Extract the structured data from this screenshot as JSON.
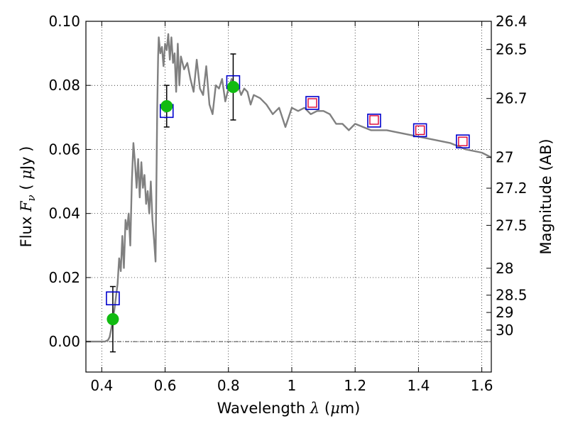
{
  "chart_data": {
    "type": "scatter",
    "xlabel": "Wavelength  λ (μm)",
    "ylabel": "Flux  Fν  ( μJy )",
    "y2label": "Magnitude (AB)",
    "xlim": [
      0.35,
      1.63
    ],
    "ylim": [
      -0.0095,
      0.1
    ],
    "grid": true,
    "x_ticks": [
      0.4,
      0.6,
      0.8,
      1.0,
      1.2,
      1.4,
      1.6
    ],
    "x_tick_labels": [
      "0.4",
      "0.6",
      "0.8",
      "1",
      "1.2",
      "1.4",
      "1.6"
    ],
    "y_ticks": [
      0.0,
      0.02,
      0.04,
      0.06,
      0.08,
      0.1
    ],
    "y_tick_labels": [
      "0.00",
      "0.02",
      "0.04",
      "0.06",
      "0.08",
      "0.10"
    ],
    "mag_ticks": [
      {
        "label": "26.4",
        "flux": 0.1
      },
      {
        "label": "26.5",
        "flux": 0.0912
      },
      {
        "label": "26.7",
        "flux": 0.0759
      },
      {
        "label": "27",
        "flux": 0.0575
      },
      {
        "label": "27.2",
        "flux": 0.0479
      },
      {
        "label": "27.5",
        "flux": 0.0363
      },
      {
        "label": "28",
        "flux": 0.0229
      },
      {
        "label": "28.5",
        "flux": 0.0145
      },
      {
        "label": "29",
        "flux": 0.0091
      },
      {
        "label": "30",
        "flux": 0.0036
      }
    ],
    "colors": {
      "model": "#808080",
      "model_photometry": "#0000cc",
      "observed_square": "#dd0033",
      "observed_point": "#11bb11",
      "errorbar": "#000000",
      "zero_line": "#000000"
    },
    "series": [
      {
        "kind": "model_spectrum",
        "x": [
          0.35,
          0.41,
          0.42,
          0.425,
          0.43,
          0.44,
          0.45,
          0.455,
          0.46,
          0.465,
          0.47,
          0.475,
          0.48,
          0.485,
          0.49,
          0.495,
          0.5,
          0.505,
          0.51,
          0.515,
          0.52,
          0.525,
          0.53,
          0.535,
          0.54,
          0.545,
          0.55,
          0.555,
          0.56,
          0.565,
          0.57,
          0.575,
          0.578,
          0.58,
          0.585,
          0.59,
          0.595,
          0.6,
          0.605,
          0.61,
          0.615,
          0.62,
          0.625,
          0.63,
          0.635,
          0.64,
          0.645,
          0.65,
          0.66,
          0.67,
          0.68,
          0.69,
          0.7,
          0.71,
          0.72,
          0.73,
          0.74,
          0.75,
          0.76,
          0.77,
          0.78,
          0.79,
          0.8,
          0.81,
          0.82,
          0.83,
          0.84,
          0.85,
          0.86,
          0.87,
          0.88,
          0.9,
          0.92,
          0.94,
          0.96,
          0.98,
          1.0,
          1.02,
          1.04,
          1.06,
          1.08,
          1.1,
          1.12,
          1.14,
          1.16,
          1.18,
          1.2,
          1.25,
          1.3,
          1.35,
          1.4,
          1.45,
          1.5,
          1.55,
          1.6,
          1.63
        ],
        "y": [
          0.0,
          0.0,
          0.0005,
          0.0015,
          0.004,
          0.01,
          0.018,
          0.026,
          0.022,
          0.033,
          0.023,
          0.038,
          0.035,
          0.04,
          0.03,
          0.05,
          0.062,
          0.056,
          0.048,
          0.057,
          0.045,
          0.056,
          0.048,
          0.052,
          0.043,
          0.047,
          0.04,
          0.05,
          0.038,
          0.032,
          0.025,
          0.072,
          0.089,
          0.095,
          0.09,
          0.092,
          0.086,
          0.093,
          0.091,
          0.096,
          0.088,
          0.095,
          0.087,
          0.09,
          0.078,
          0.093,
          0.08,
          0.089,
          0.085,
          0.087,
          0.082,
          0.078,
          0.088,
          0.079,
          0.077,
          0.086,
          0.074,
          0.071,
          0.08,
          0.079,
          0.082,
          0.075,
          0.079,
          0.082,
          0.078,
          0.08,
          0.077,
          0.079,
          0.078,
          0.074,
          0.077,
          0.076,
          0.074,
          0.071,
          0.073,
          0.067,
          0.073,
          0.072,
          0.073,
          0.071,
          0.072,
          0.072,
          0.071,
          0.068,
          0.068,
          0.066,
          0.068,
          0.066,
          0.066,
          0.065,
          0.064,
          0.063,
          0.062,
          0.06,
          0.059,
          0.0575
        ]
      },
      {
        "kind": "model_photometry_squares",
        "x": [
          0.435,
          0.605,
          0.815,
          1.065,
          1.26,
          1.405,
          1.54
        ],
        "y": [
          0.0135,
          0.072,
          0.081,
          0.0745,
          0.069,
          0.066,
          0.0625
        ]
      },
      {
        "kind": "observed_squares",
        "x": [
          1.065,
          1.26,
          1.405,
          1.54
        ],
        "y": [
          0.0745,
          0.0692,
          0.066,
          0.0625
        ]
      },
      {
        "kind": "observed_points",
        "x": [
          0.435,
          0.605,
          0.815
        ],
        "y": [
          0.007,
          0.0735,
          0.0795
        ],
        "yerr": [
          0.0102,
          0.0065,
          0.0103
        ]
      }
    ]
  }
}
